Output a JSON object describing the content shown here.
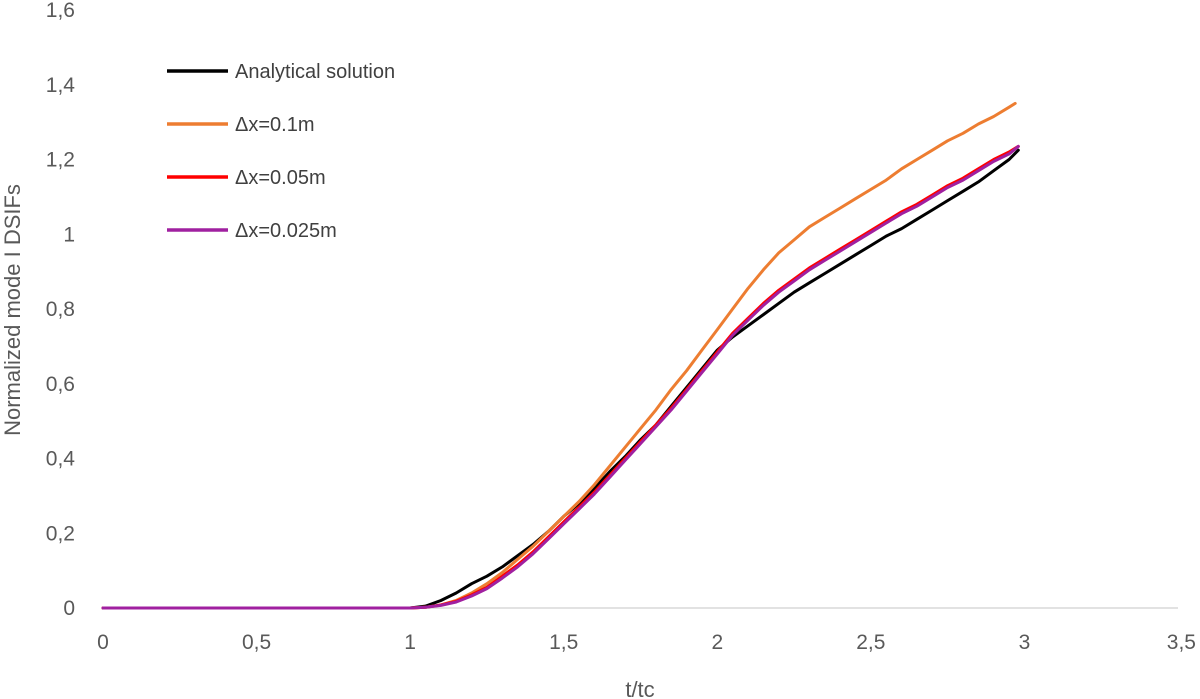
{
  "chart_data": {
    "type": "line",
    "title": "",
    "xlabel": "t/tc",
    "ylabel": "Normalized mode I DSIFs",
    "xlim": [
      0,
      3.5
    ],
    "ylim": [
      0,
      1.6
    ],
    "xticks": [
      0,
      0.5,
      1,
      1.5,
      2,
      2.5,
      3,
      3.5
    ],
    "yticks": [
      0,
      0.2,
      0.4,
      0.6,
      0.8,
      1,
      1.2,
      1.4,
      1.6
    ],
    "xtick_labels": [
      "0",
      "0,5",
      "1",
      "1,5",
      "2",
      "2,5",
      "3",
      "3,5"
    ],
    "ytick_labels": [
      "0",
      "0,2",
      "0,4",
      "0,6",
      "0,8",
      "1",
      "1,2",
      "1,4",
      "1,6"
    ],
    "grid": false,
    "legend_position": "top-left",
    "series": [
      {
        "name": "Analytical solution",
        "color": "#000000",
        "x": [
          0,
          1.0,
          1.05,
          1.1,
          1.15,
          1.2,
          1.25,
          1.3,
          1.35,
          1.4,
          1.45,
          1.5,
          1.55,
          1.6,
          1.65,
          1.7,
          1.75,
          1.8,
          1.85,
          1.9,
          1.95,
          2.0,
          2.05,
          2.1,
          2.15,
          2.2,
          2.25,
          2.3,
          2.35,
          2.4,
          2.45,
          2.5,
          2.55,
          2.6,
          2.65,
          2.7,
          2.75,
          2.8,
          2.85,
          2.9,
          2.95,
          2.98
        ],
        "values": [
          0,
          0,
          0.005,
          0.02,
          0.04,
          0.065,
          0.085,
          0.11,
          0.14,
          0.17,
          0.205,
          0.245,
          0.28,
          0.32,
          0.365,
          0.405,
          0.45,
          0.49,
          0.54,
          0.59,
          0.64,
          0.69,
          0.725,
          0.755,
          0.785,
          0.815,
          0.845,
          0.87,
          0.895,
          0.92,
          0.945,
          0.97,
          0.995,
          1.015,
          1.04,
          1.065,
          1.09,
          1.115,
          1.14,
          1.17,
          1.2,
          1.225
        ]
      },
      {
        "name": "Δx=0.1m",
        "color": "#ED7D31",
        "x": [
          0,
          1.0,
          1.05,
          1.1,
          1.15,
          1.2,
          1.25,
          1.3,
          1.35,
          1.4,
          1.45,
          1.5,
          1.55,
          1.6,
          1.65,
          1.7,
          1.75,
          1.8,
          1.85,
          1.9,
          1.95,
          2.0,
          2.05,
          2.1,
          2.15,
          2.2,
          2.25,
          2.3,
          2.35,
          2.4,
          2.45,
          2.5,
          2.55,
          2.6,
          2.65,
          2.7,
          2.75,
          2.8,
          2.85,
          2.9,
          2.95,
          2.97
        ],
        "values": [
          0,
          0,
          0.002,
          0.008,
          0.02,
          0.04,
          0.065,
          0.095,
          0.13,
          0.165,
          0.205,
          0.245,
          0.285,
          0.33,
          0.38,
          0.43,
          0.48,
          0.53,
          0.585,
          0.635,
          0.69,
          0.745,
          0.8,
          0.855,
          0.905,
          0.95,
          0.985,
          1.02,
          1.045,
          1.07,
          1.095,
          1.12,
          1.145,
          1.175,
          1.2,
          1.225,
          1.25,
          1.27,
          1.295,
          1.315,
          1.34,
          1.35
        ]
      },
      {
        "name": "Δx=0.05m",
        "color": "#FF0000",
        "x": [
          0,
          1.0,
          1.05,
          1.1,
          1.15,
          1.2,
          1.25,
          1.3,
          1.35,
          1.4,
          1.45,
          1.5,
          1.55,
          1.6,
          1.65,
          1.7,
          1.75,
          1.8,
          1.85,
          1.9,
          1.95,
          2.0,
          2.05,
          2.1,
          2.15,
          2.2,
          2.25,
          2.3,
          2.35,
          2.4,
          2.45,
          2.5,
          2.55,
          2.6,
          2.65,
          2.7,
          2.75,
          2.8,
          2.85,
          2.9,
          2.95,
          2.98
        ],
        "values": [
          0,
          0,
          0.002,
          0.008,
          0.018,
          0.035,
          0.055,
          0.085,
          0.115,
          0.15,
          0.19,
          0.23,
          0.27,
          0.31,
          0.355,
          0.4,
          0.445,
          0.49,
          0.535,
          0.585,
          0.635,
          0.685,
          0.735,
          0.775,
          0.815,
          0.85,
          0.88,
          0.91,
          0.935,
          0.96,
          0.985,
          1.01,
          1.035,
          1.06,
          1.08,
          1.105,
          1.13,
          1.15,
          1.175,
          1.2,
          1.22,
          1.235
        ]
      },
      {
        "name": "Δx=0.025m",
        "color": "#A020A0",
        "x": [
          0,
          1.0,
          1.05,
          1.1,
          1.15,
          1.2,
          1.25,
          1.3,
          1.35,
          1.4,
          1.45,
          1.5,
          1.55,
          1.6,
          1.65,
          1.7,
          1.75,
          1.8,
          1.85,
          1.9,
          1.95,
          2.0,
          2.05,
          2.1,
          2.15,
          2.2,
          2.25,
          2.3,
          2.35,
          2.4,
          2.45,
          2.5,
          2.55,
          2.6,
          2.65,
          2.7,
          2.75,
          2.8,
          2.85,
          2.9,
          2.95,
          2.98
        ],
        "values": [
          0,
          0,
          0.002,
          0.007,
          0.016,
          0.032,
          0.052,
          0.08,
          0.11,
          0.145,
          0.185,
          0.225,
          0.265,
          0.305,
          0.35,
          0.395,
          0.44,
          0.485,
          0.53,
          0.58,
          0.63,
          0.68,
          0.73,
          0.77,
          0.81,
          0.845,
          0.875,
          0.905,
          0.93,
          0.955,
          0.98,
          1.005,
          1.03,
          1.055,
          1.075,
          1.1,
          1.125,
          1.145,
          1.17,
          1.195,
          1.215,
          1.235
        ]
      }
    ]
  }
}
